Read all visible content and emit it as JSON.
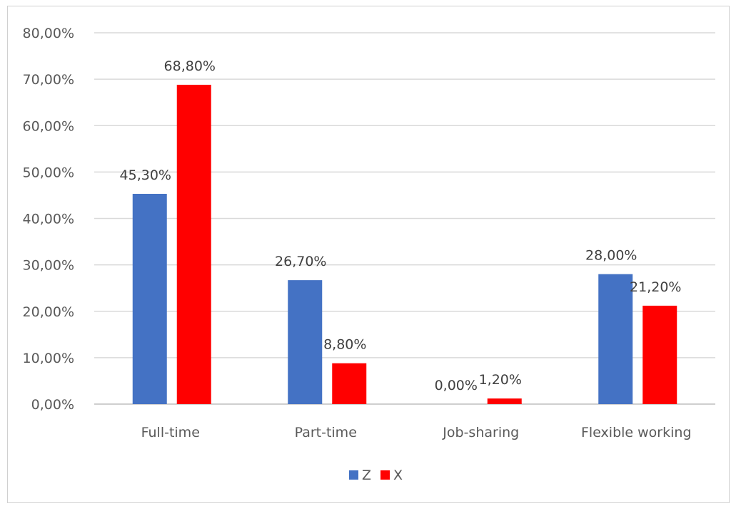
{
  "chart_data": {
    "type": "bar",
    "categories": [
      "Full-time",
      "Part-time",
      "Job-sharing",
      "Flexible working"
    ],
    "series": [
      {
        "name": "Z",
        "color": "#4472C4",
        "values": [
          45.3,
          26.7,
          0.0,
          28.0
        ],
        "labels": [
          "45,30%",
          "26,70%",
          "0,00%",
          "28,00%"
        ]
      },
      {
        "name": "X",
        "color": "#FF0000",
        "values": [
          68.8,
          8.8,
          1.2,
          21.2
        ],
        "labels": [
          "68,80%",
          "8,80%",
          "1,20%",
          "21,20%"
        ]
      }
    ],
    "yticks": [
      0,
      10,
      20,
      30,
      40,
      50,
      60,
      70,
      80
    ],
    "ytick_labels": [
      "0,00%",
      "10,00%",
      "20,00%",
      "30,00%",
      "40,00%",
      "50,00%",
      "60,00%",
      "70,00%",
      "80,00%"
    ],
    "ylim": [
      0,
      80
    ],
    "grid": true,
    "legend_position": "bottom",
    "title": "",
    "xlabel": "",
    "ylabel": ""
  },
  "colors": {
    "grid": "#d9d9d9",
    "axis": "#bfbfbf"
  }
}
